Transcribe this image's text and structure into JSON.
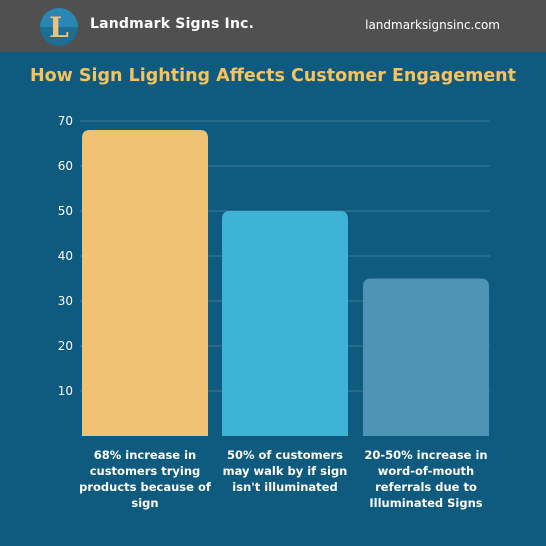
{
  "header": {
    "company": "Landmark Signs Inc.",
    "url": "landmarksignsinc.com",
    "logo_letter": "L"
  },
  "colors": {
    "background": "#0f5a7f",
    "header": "#505050",
    "title": "#f6c35e",
    "bar_1": "#f1c174",
    "bar_2": "#3fb3d6",
    "bar_3": "#4f93b5"
  },
  "chart_data": {
    "type": "bar",
    "title": "How Sign Lighting Affects Customer Engagement",
    "categories": [
      "68% increase in customers trying products because of sign",
      "50% of customers may walk by if sign isn't illuminated",
      "20-50% increase in word-of-mouth referrals due to Illuminated Signs"
    ],
    "values": [
      68,
      50,
      35
    ],
    "yticks": [
      10,
      20,
      30,
      40,
      50,
      60,
      70
    ],
    "ylim": [
      0,
      70
    ],
    "grid": true
  }
}
